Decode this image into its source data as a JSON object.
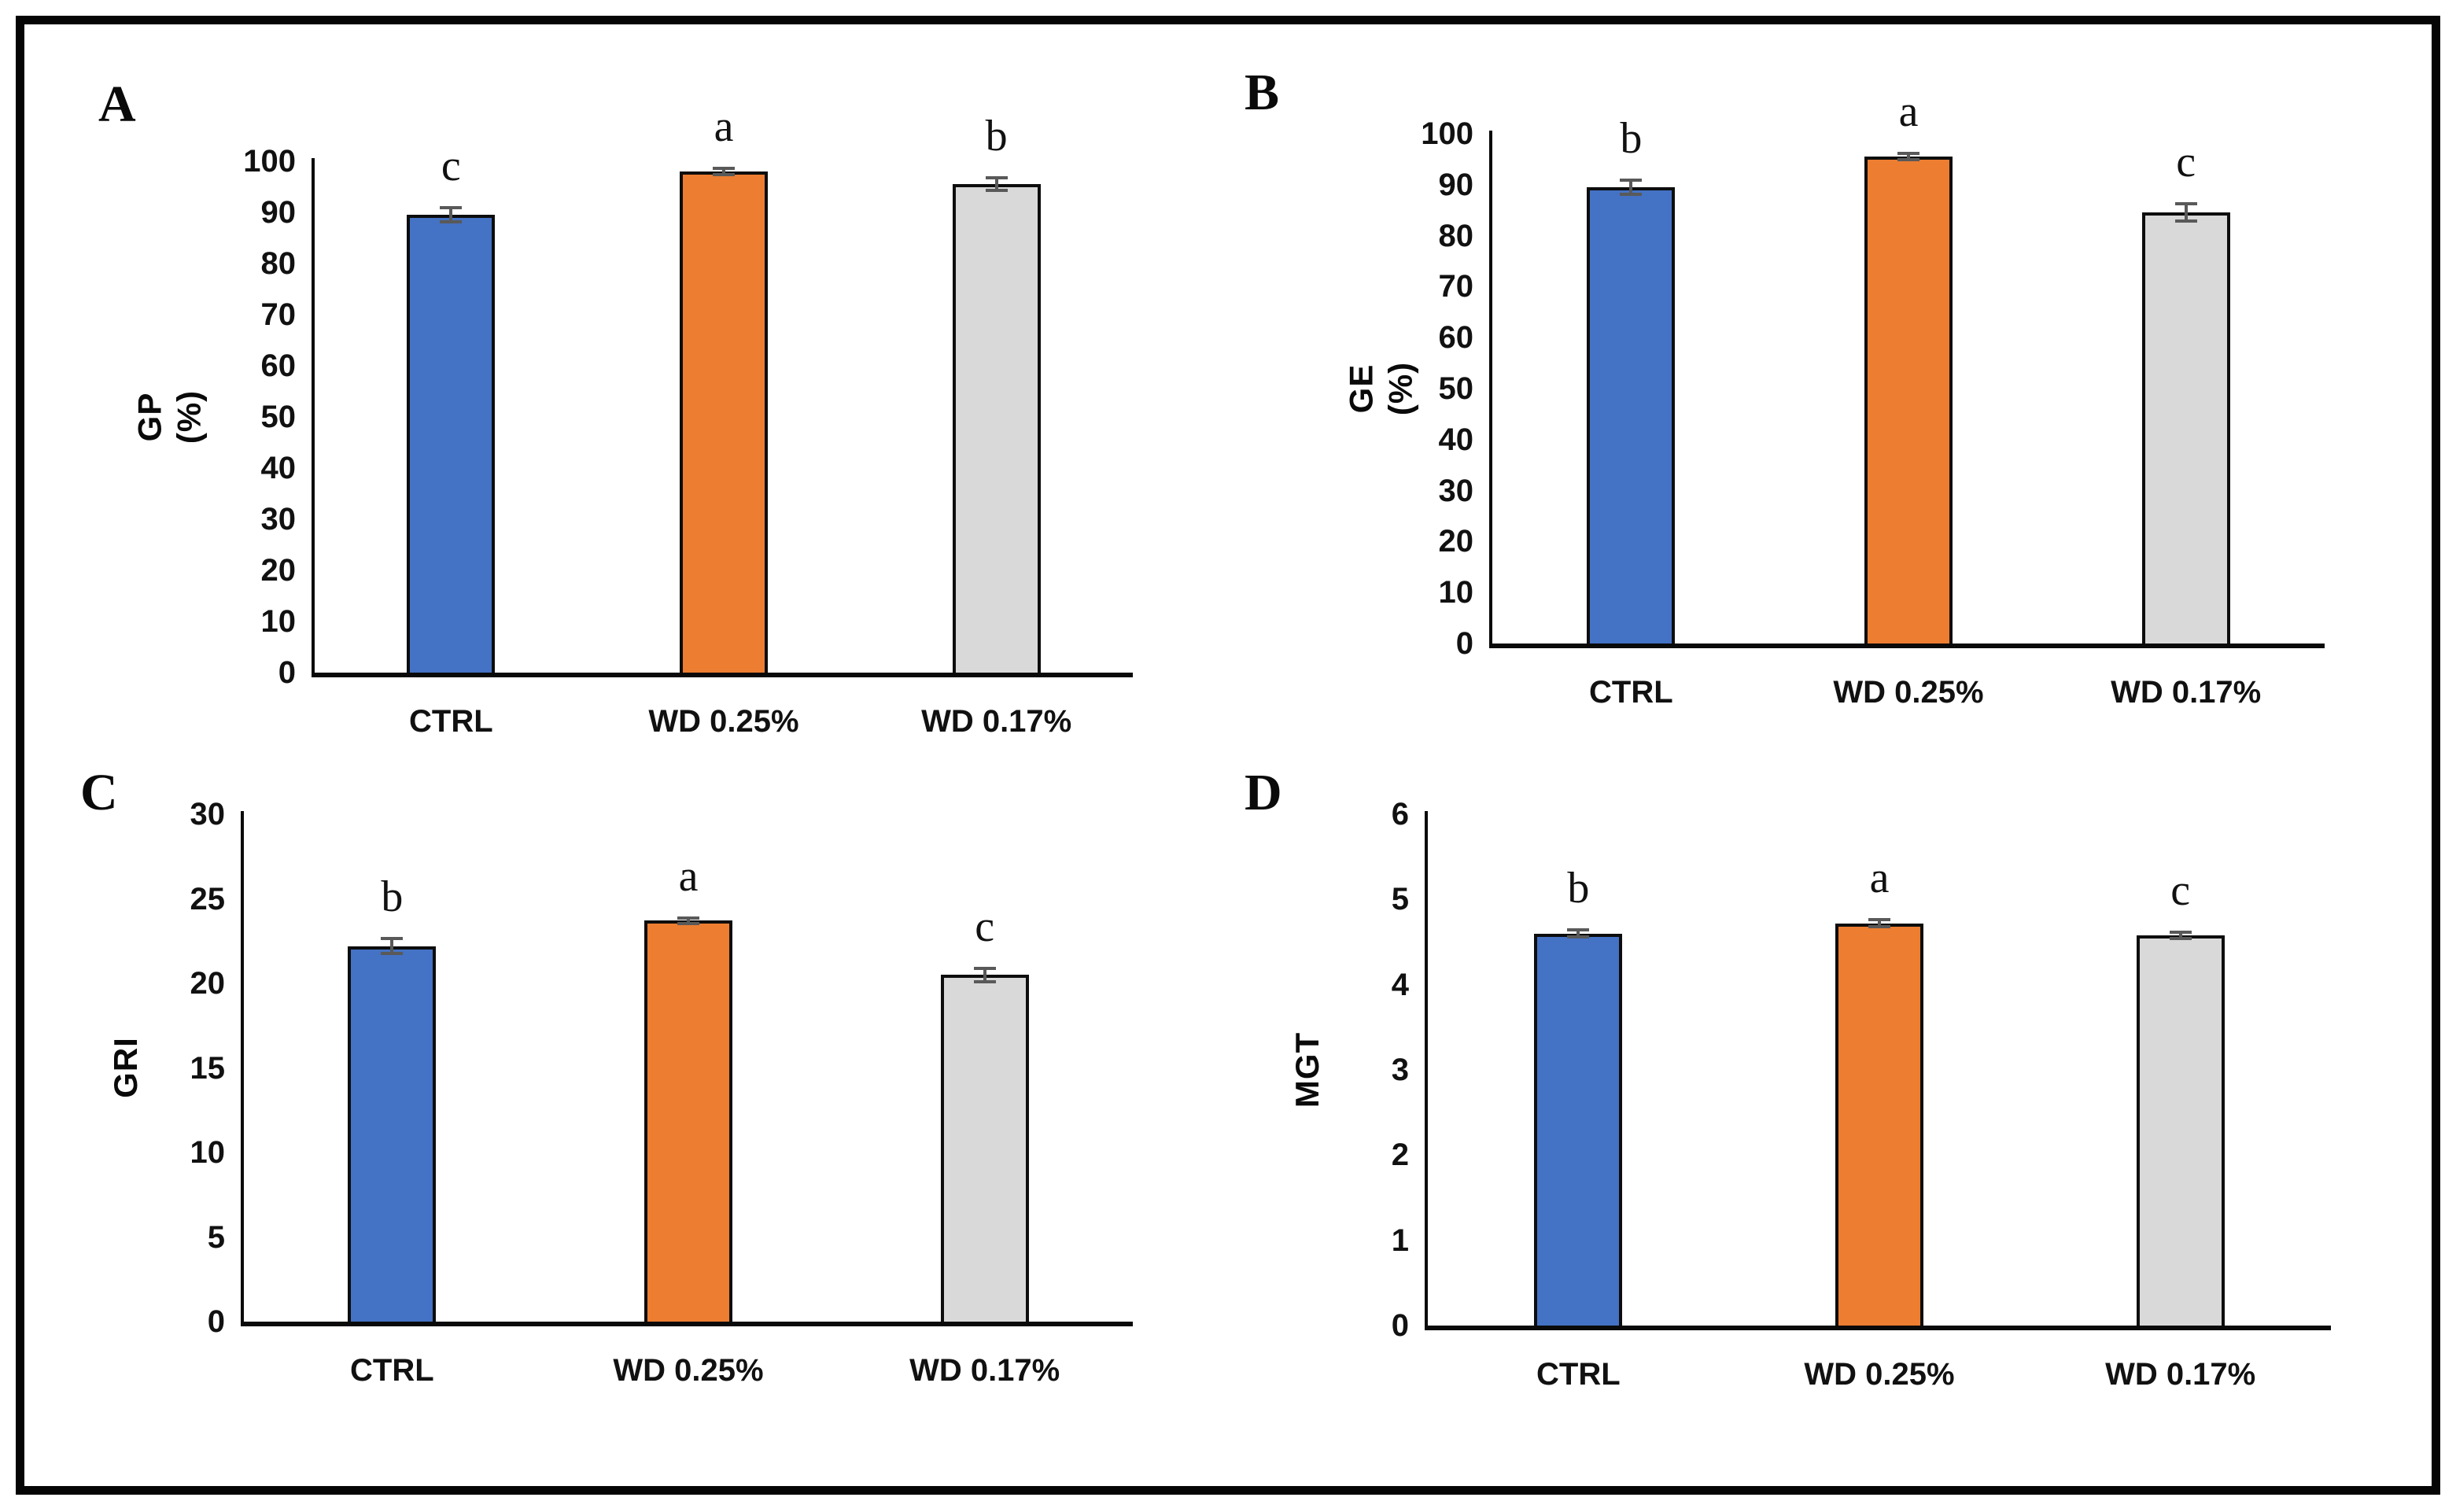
{
  "figure": {
    "frame_border_color": "#050505",
    "background_color": "#ffffff",
    "panel_letters": [
      "A",
      "B",
      "C",
      "D"
    ]
  },
  "colors": {
    "ctrl_blue": "#4472C4",
    "wd025_orange": "#ED7D31",
    "wd017_gray": "#D9D9D9",
    "bar_border": "#0d0d0d",
    "error_bar": "#595959",
    "axis": "#0a0a0a"
  },
  "chart_data": [
    {
      "panel": "A",
      "type": "bar",
      "ylabel": "GP (%)",
      "ylabel_lines": [
        "GP",
        "(%)"
      ],
      "ylim": [
        0,
        100
      ],
      "yticks": [
        0,
        10,
        20,
        30,
        40,
        50,
        60,
        70,
        80,
        90,
        100
      ],
      "categories": [
        "CTRL",
        "WD 0.25%",
        "WD 0.17%"
      ],
      "values": [
        89.5,
        98.0,
        95.5
      ],
      "errors": [
        1.2,
        0.45,
        1.1
      ],
      "sig_letters": [
        "c",
        "a",
        "b"
      ],
      "bar_colors": [
        "#4472C4",
        "#ED7D31",
        "#D9D9D9"
      ],
      "grid": false,
      "legend": "none"
    },
    {
      "panel": "B",
      "type": "bar",
      "ylabel": "GE (%)",
      "ylabel_lines": [
        "GE",
        "(%)"
      ],
      "ylim": [
        0,
        100
      ],
      "yticks": [
        0,
        10,
        20,
        30,
        40,
        50,
        60,
        70,
        80,
        90,
        100
      ],
      "categories": [
        "CTRL",
        "WD 0.25%",
        "WD 0.17%"
      ],
      "values": [
        89.5,
        95.5,
        84.5
      ],
      "errors": [
        1.2,
        0.45,
        1.55
      ],
      "sig_letters": [
        "b",
        "a",
        "c"
      ],
      "bar_colors": [
        "#4472C4",
        "#ED7D31",
        "#D9D9D9"
      ],
      "grid": false,
      "legend": "none"
    },
    {
      "panel": "C",
      "type": "bar",
      "ylabel": "GRI",
      "ylabel_lines": [
        "GRI"
      ],
      "ylim": [
        0,
        30
      ],
      "yticks": [
        0,
        5,
        10,
        15,
        20,
        25,
        30
      ],
      "categories": [
        "CTRL",
        "WD 0.25%",
        "WD 0.17%"
      ],
      "values": [
        22.2,
        23.7,
        20.5
      ],
      "errors": [
        0.4,
        0.1,
        0.35
      ],
      "sig_letters": [
        "b",
        "a",
        "c"
      ],
      "bar_colors": [
        "#4472C4",
        "#ED7D31",
        "#D9D9D9"
      ],
      "grid": false,
      "legend": "none"
    },
    {
      "panel": "D",
      "type": "bar",
      "ylabel": "MGT",
      "ylabel_lines": [
        "MGT"
      ],
      "ylim": [
        0,
        6
      ],
      "yticks": [
        0,
        1,
        2,
        3,
        4,
        5,
        6
      ],
      "categories": [
        "CTRL",
        "WD 0.25%",
        "WD 0.17%"
      ],
      "values": [
        4.6,
        4.72,
        4.58
      ],
      "errors": [
        0.03,
        0.03,
        0.03
      ],
      "sig_letters": [
        "b",
        "a",
        "c"
      ],
      "bar_colors": [
        "#4472C4",
        "#ED7D31",
        "#D9D9D9"
      ],
      "grid": false,
      "legend": "none"
    }
  ]
}
